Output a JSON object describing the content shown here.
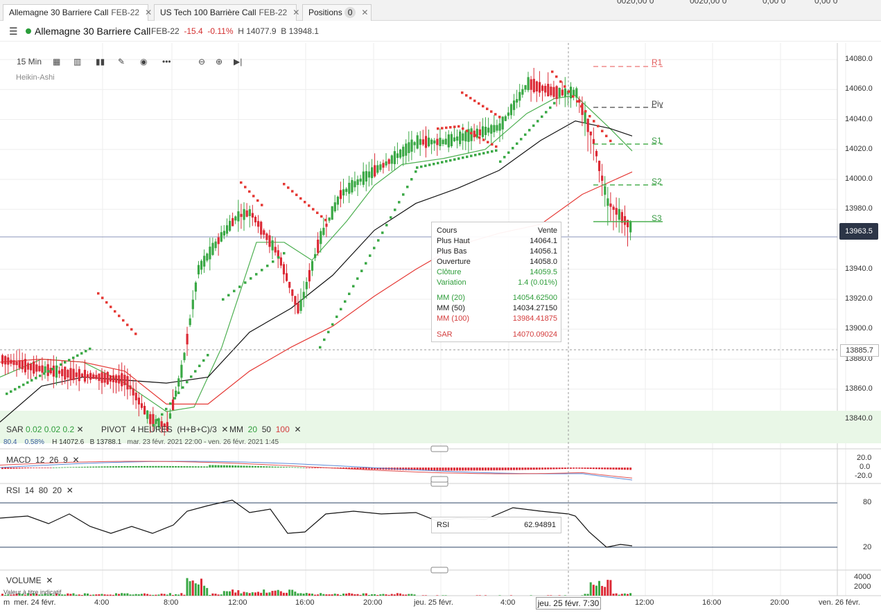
{
  "tabs": [
    {
      "title": "Allemagne 30 Barriere Call",
      "sub": "FEB-22"
    },
    {
      "title": "US Tech 100 Barrière Call",
      "sub": "FEB-22"
    },
    {
      "title": "Positions",
      "badge": "0"
    }
  ],
  "header": {
    "name": "Allemagne 30 Barriere Call",
    "expiry": "FEB-22",
    "change": "-15.4",
    "change_pct": "-0.11%",
    "high": "H 14077.9",
    "bid": "B 13948.1"
  },
  "toolbar": {
    "interval": "15 Min",
    "chart_style": "Heikin-Ashi"
  },
  "tooltip": {
    "title": "Cours",
    "title_value": "Vente",
    "rows": [
      {
        "k": "Plus Haut",
        "v": "14064.1"
      },
      {
        "k": "Plus Bas",
        "v": "14056.1"
      },
      {
        "k": "Ouverture",
        "v": "14058.0"
      },
      {
        "k": "Clôture",
        "v": "14059.5"
      },
      {
        "k": "Variation",
        "v": "1.4 (0.01%)"
      },
      {
        "k": "MM (20)",
        "v": "14054.62500"
      },
      {
        "k": "MM (50)",
        "v": "14034.27150"
      },
      {
        "k": "MM (100)",
        "v": "13984.41875"
      },
      {
        "k": "SAR",
        "v": "14070.09024"
      }
    ]
  },
  "rsi_tooltip": {
    "k": "RSI",
    "v": "62.94891"
  },
  "indicators": {
    "sar": {
      "label": "SAR",
      "a": "0.02",
      "b": "0.02",
      "c": "0.2"
    },
    "pivot": {
      "label": "PIVOT",
      "period": "4 HEURES",
      "formula": "(H+B+C)/3"
    },
    "mm": {
      "label": "MM",
      "a": "20",
      "b": "50",
      "c": "100"
    },
    "info": {
      "v1": "80.4",
      "v2": "0.58%",
      "h": "H 14072.6",
      "b": "B 13788.1",
      "range": "mar. 23 févr. 2021 22:00 - ven. 26 févr. 2021 1:45"
    },
    "macd": {
      "label": "MACD",
      "a": "12",
      "b": "26",
      "c": "9"
    },
    "rsi": {
      "label": "RSI",
      "a": "14",
      "b": "80",
      "c": "20"
    },
    "volume": {
      "label": "VOLUME",
      "note": "Valeur à titre indicatif"
    }
  },
  "pivot_labels": [
    "R1",
    "Piv",
    "S1",
    "S2",
    "S3"
  ],
  "price_axis": [
    "14080.0",
    "14060.0",
    "14040.0",
    "14020.0",
    "14000.0",
    "13980.0",
    "13940.0",
    "13920.0",
    "13900.0",
    "13880.0",
    "13860.0",
    "13840.0"
  ],
  "current_price": "13963.5",
  "crosshair_price": "13885.7",
  "macd_axis": [
    "20.0",
    "0.0",
    "-20.0"
  ],
  "rsi_axis": [
    "80",
    "20"
  ],
  "volume_axis": [
    "4000",
    "2000"
  ],
  "time_axis": [
    "m",
    "mer. 24 févr.",
    "4:00",
    "8:00",
    "12:00",
    "16:00",
    "20:00",
    "jeu. 25 févr.",
    "4:00",
    "12:00",
    "16:00",
    "20:00",
    "ven. 26 févr."
  ],
  "crosshair_time": "jeu. 25 févr. 7:30",
  "top_numbers": [
    "0020,00 0",
    "0020,00 0",
    "0,00 0",
    "0,00 0"
  ],
  "colors": {
    "up": "#3aa845",
    "down": "#dc2a36",
    "mm20": "#4caf50",
    "mm50": "#111111",
    "mm100": "#e53935",
    "sar_up": "#3aa845",
    "sar_down": "#e53935"
  }
}
